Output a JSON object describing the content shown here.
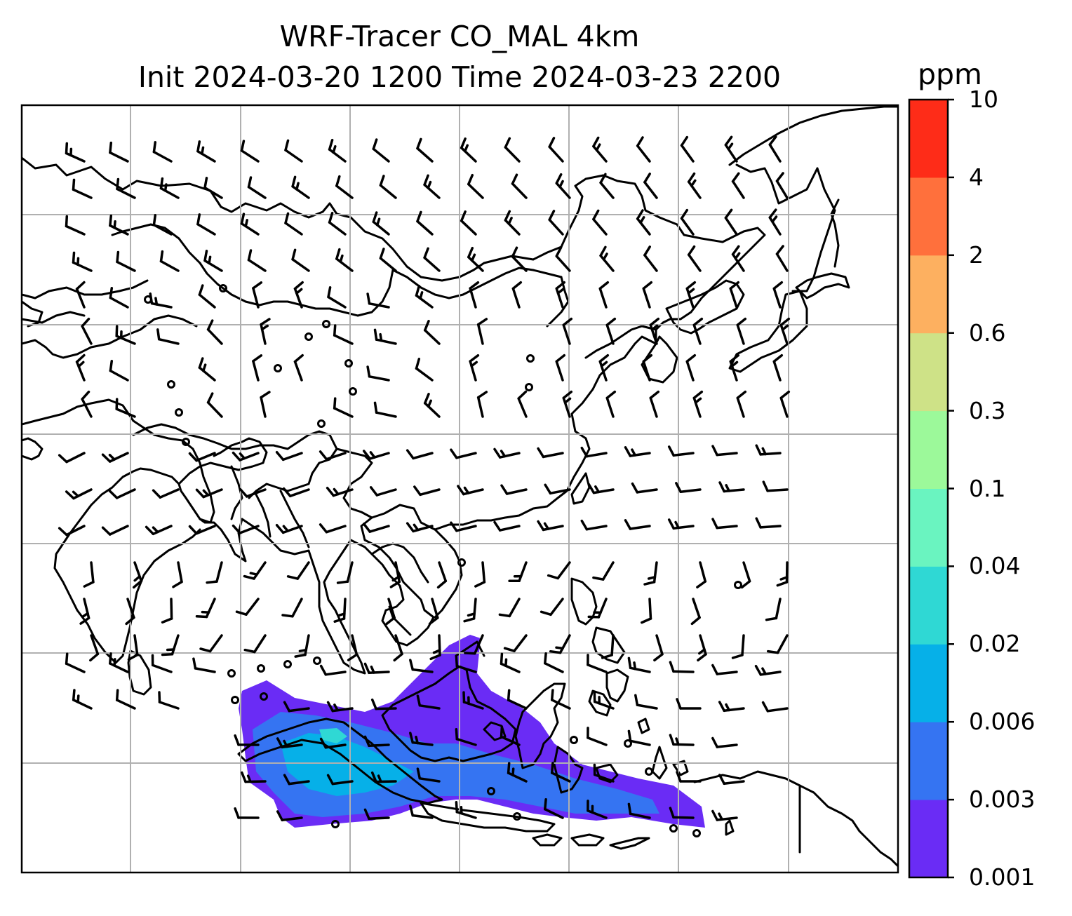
{
  "title": {
    "line1": "WRF-Tracer CO_MAL 4km",
    "line2": "Init 2024-03-20 1200 Time 2024-03-23 2200"
  },
  "colorbar": {
    "unit": "ppm",
    "levels": [
      "0.001",
      "0.003",
      "0.006",
      "0.02",
      "0.04",
      "0.1",
      "0.3",
      "0.6",
      "2",
      "4",
      "10"
    ],
    "colors": [
      "#6a2cf5",
      "#3574f2",
      "#06b0e8",
      "#2fd8d4",
      "#6af4c0",
      "#9cf99a",
      "#cee287",
      "#fdb060",
      "#ff703c",
      "#fe2c18"
    ]
  },
  "map": {
    "region": "South, Southeast and East Asia",
    "gridlines": true,
    "plume_colors": {
      "low": "#6a2cf5",
      "mid": "#3574f2",
      "high": "#06b0e8",
      "peak": "#2fd8d4"
    }
  }
}
